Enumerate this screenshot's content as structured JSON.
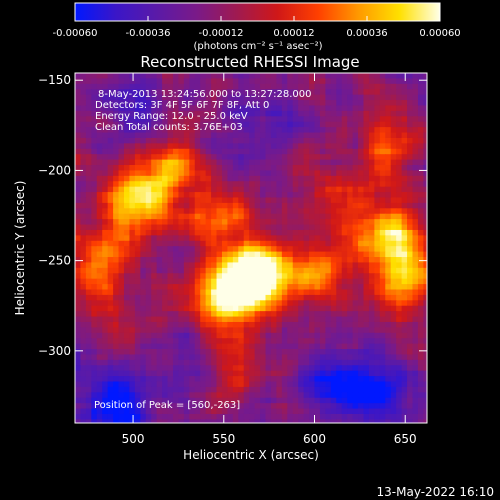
{
  "chart_data": {
    "type": "heatmap",
    "title": "Reconstructed RHESSI Image",
    "xlabel": "Heliocentric X (arcsec)",
    "ylabel": "Heliocentric Y (arcsec)",
    "xlim": [
      468,
      662
    ],
    "ylim": [
      -340,
      -146
    ],
    "x_ticks": [
      500,
      550,
      600,
      650
    ],
    "y_ticks": [
      -150,
      -200,
      -250,
      -300
    ],
    "colorbar": {
      "range": [
        -0.0006,
        0.0006
      ],
      "tick_labels": [
        "-0.00060",
        "-0.00036",
        "-0.00012",
        "0.00012",
        "0.00036",
        "0.00060"
      ],
      "unit_label": "(photons cm⁻² s⁻¹ asec⁻²)",
      "colors": [
        "#0018ff",
        "#3a16c8",
        "#5a1aa8",
        "#7a1a88",
        "#a01a50",
        "#d01818",
        "#ff4000",
        "#ff9a00",
        "#ffe000",
        "#ffffe8"
      ]
    },
    "info_lines": [
      "8-May-2013 13:24:56.000 to 13:27:28.000",
      "Detectors: 3F 4F 5F 6F 7F 8F, Att 0",
      "Energy Range: 12.0 - 25.0 keV",
      "Clean    Total counts: 3.76E+03"
    ],
    "peak_label": "Position of Peak = [560,-263]",
    "peak": [
      560,
      -263
    ],
    "bright_regions": [
      {
        "x": 500,
        "y": -218,
        "amp": 0.0006
      },
      {
        "x": 520,
        "y": -200,
        "amp": 0.0005
      },
      {
        "x": 545,
        "y": -228,
        "amp": 0.00045
      },
      {
        "x": 560,
        "y": -263,
        "amp": 0.0007
      },
      {
        "x": 548,
        "y": -275,
        "amp": 0.0005
      },
      {
        "x": 575,
        "y": -255,
        "amp": 0.0005
      },
      {
        "x": 600,
        "y": -258,
        "amp": 0.00035
      },
      {
        "x": 612,
        "y": -215,
        "amp": 0.0003
      },
      {
        "x": 640,
        "y": -235,
        "amp": 0.0006
      },
      {
        "x": 650,
        "y": -260,
        "amp": 0.0005
      },
      {
        "x": 640,
        "y": -185,
        "amp": 0.0004
      },
      {
        "x": 480,
        "y": -250,
        "amp": 0.00035
      },
      {
        "x": 492,
        "y": -290,
        "amp": 0.0002
      },
      {
        "x": 560,
        "y": -310,
        "amp": 0.0002
      }
    ],
    "dim_regions": [
      {
        "x": 490,
        "y": -330,
        "amp": -0.00045
      },
      {
        "x": 610,
        "y": -320,
        "amp": -0.0004
      },
      {
        "x": 640,
        "y": -320,
        "amp": -0.0003
      },
      {
        "x": 500,
        "y": -165,
        "amp": -0.00025
      },
      {
        "x": 570,
        "y": -175,
        "amp": -0.0002
      },
      {
        "x": 530,
        "y": -305,
        "amp": -0.0002
      }
    ]
  },
  "footer_timestamp": "13-May-2022 16:10"
}
